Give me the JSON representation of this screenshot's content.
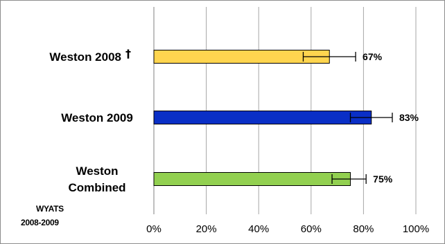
{
  "chart_data": {
    "type": "bar",
    "orientation": "horizontal",
    "categories": [
      {
        "label": "Weston 2008",
        "marker": "†",
        "color": "#ffd54f"
      },
      {
        "label_lines": [
          "Weston 2009"
        ],
        "color": "#0a2fc6"
      },
      {
        "label_lines": [
          "Weston",
          "Combined"
        ],
        "color": "#92d050"
      }
    ],
    "values": [
      67,
      83,
      75
    ],
    "error_low": [
      57,
      75,
      68
    ],
    "error_high": [
      77,
      91,
      81
    ],
    "data_labels": [
      "67%",
      "83%",
      "75%"
    ],
    "xlim": [
      0,
      100
    ],
    "x_ticks": [
      "0%",
      "20%",
      "40%",
      "60%",
      "80%",
      "100%"
    ],
    "grid": true,
    "legend": "none",
    "note": [
      "WYATS",
      "2008-2009"
    ],
    "gridline_color": "#a6a6a6",
    "axis_color": "#7f7f7f"
  }
}
